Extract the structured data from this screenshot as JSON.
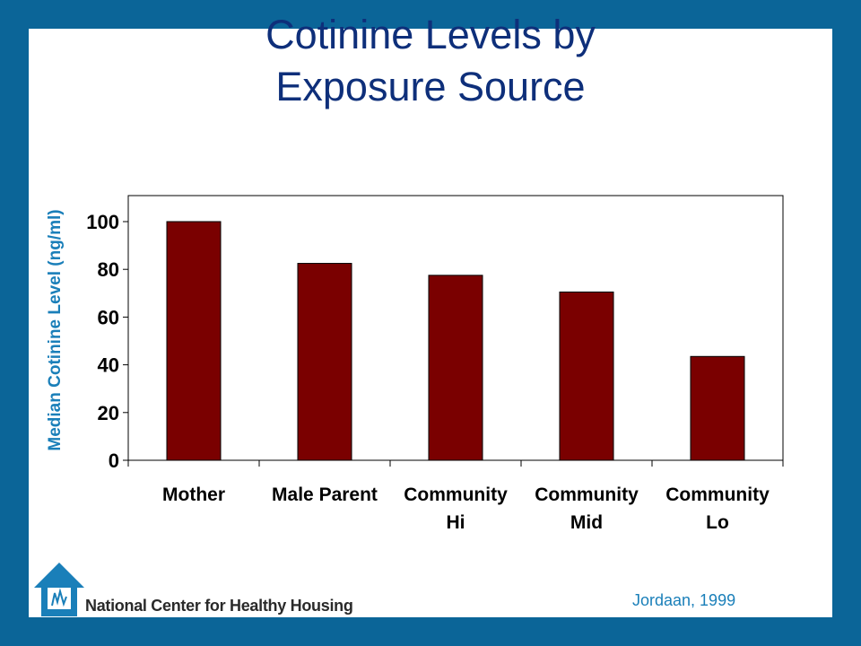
{
  "slide": {
    "title_line1": "Cotinine Levels by",
    "title_line2": "Exposure Source",
    "source": "Jordaan, 1999",
    "organization": "National Center for Healthy Housing"
  },
  "chart_data": {
    "type": "bar",
    "categories": [
      [
        "Mother"
      ],
      [
        "Male Parent"
      ],
      [
        "Community",
        "Hi"
      ],
      [
        "Community",
        "Mid"
      ],
      [
        "Community",
        "Lo"
      ]
    ],
    "values": [
      100,
      82.5,
      77.5,
      70.5,
      43.5
    ],
    "ylabel": "Median Cotinine Level (ng/ml)",
    "ylim": [
      0,
      110
    ],
    "yticks": [
      0,
      20,
      40,
      60,
      80,
      100
    ],
    "grid": false,
    "legend": false,
    "bar_color": "#7a0000"
  }
}
